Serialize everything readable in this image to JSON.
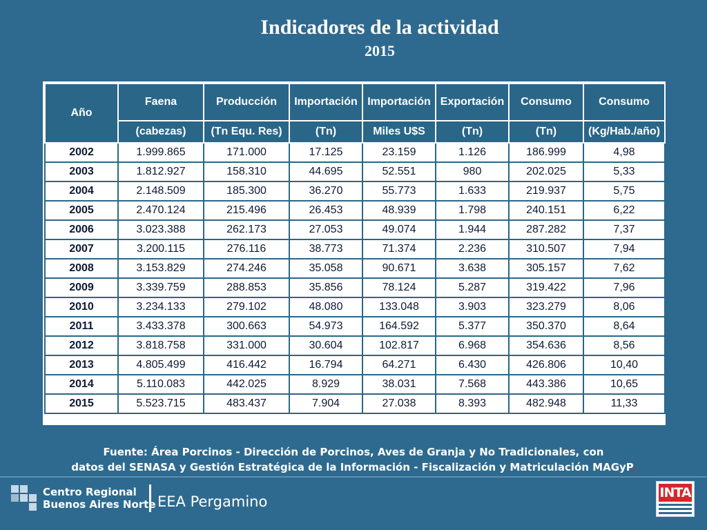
{
  "title": "Indicadores de la actividad",
  "subtitle": "2015",
  "table": {
    "headers_top": [
      "Año",
      "Faena",
      "Producción",
      "Importación",
      "Importación",
      "Exportación",
      "Consumo",
      "Consumo"
    ],
    "headers_units": [
      "(cabezas)",
      "(Tn Equ. Res)",
      "(Tn)",
      "Miles U$S",
      "(Tn)",
      "(Tn)",
      "(Kg/Hab./año)"
    ],
    "rows": [
      [
        "2002",
        "1.999.865",
        "171.000",
        "17.125",
        "23.159",
        "1.126",
        "186.999",
        "4,98"
      ],
      [
        "2003",
        "1.812.927",
        "158.310",
        "44.695",
        "52.551",
        "980",
        "202.025",
        "5,33"
      ],
      [
        "2004",
        "2.148.509",
        "185.300",
        "36.270",
        "55.773",
        "1.633",
        "219.937",
        "5,75"
      ],
      [
        "2005",
        "2.470.124",
        "215.496",
        "26.453",
        "48.939",
        "1.798",
        "240.151",
        "6,22"
      ],
      [
        "2006",
        "3.023.388",
        "262.173",
        "27.053",
        "49.074",
        "1.944",
        "287.282",
        "7,37"
      ],
      [
        "2007",
        "3.200.115",
        "276.116",
        "38.773",
        "71.374",
        "2.236",
        "310.507",
        "7,94"
      ],
      [
        "2008",
        "3.153.829",
        "274.246",
        "35.058",
        "90.671",
        "3.638",
        "305.157",
        "7,62"
      ],
      [
        "2009",
        "3.339.759",
        "288.853",
        "35.856",
        "78.124",
        "5.287",
        "319.422",
        "7,96"
      ],
      [
        "2010",
        "3.234.133",
        "279.102",
        "48.080",
        "133.048",
        "3.903",
        "323.279",
        "8,06"
      ],
      [
        "2011",
        "3.433.378",
        "300.663",
        "54.973",
        "164.592",
        "5.377",
        "350.370",
        "8,64"
      ],
      [
        "2012",
        "3.818.758",
        "331.000",
        "30.604",
        "102.817",
        "6.968",
        "354.636",
        "8,56"
      ],
      [
        "2013",
        "4.805.499",
        "416.442",
        "16.794",
        "64.271",
        "6.430",
        "426.806",
        "10,40"
      ],
      [
        "2014",
        "5.110.083",
        "442.025",
        "8.929",
        "38.031",
        "7.568",
        "443.386",
        "10,65"
      ],
      [
        "2015",
        "5.523.715",
        "483.437",
        "7.904",
        "27.038",
        "8.393",
        "482.948",
        "11,33"
      ]
    ]
  },
  "source": {
    "line1": "Fuente: Área Porcinos - Dirección de Porcinos, Aves de Granja y No Tradicionales, con",
    "line2": "datos del SENASA y Gestión Estratégica de la Información - Fiscalización y Matriculación MAGyP",
    "line2_end": "."
  },
  "footer": {
    "org_line1": "Centro Regional",
    "org_line2": "Buenos Aires Norte",
    "station": "EEA Pergamino",
    "logo_text": "INTA",
    "logo_grid_icon": "grid-logo-icon"
  },
  "colors": {
    "background": "#2e6a8f",
    "header_cell": "#2a6688",
    "cell_text": "#0d1a33",
    "logo_red": "#d6262a"
  }
}
